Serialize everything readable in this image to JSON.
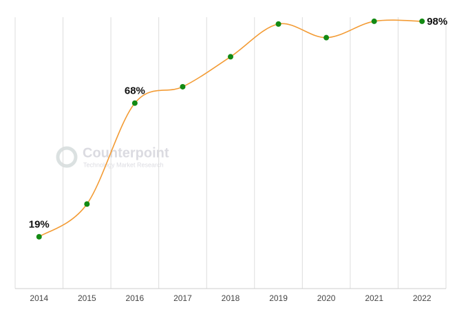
{
  "chart_data": {
    "type": "line",
    "categories": [
      "2014",
      "2015",
      "2016",
      "2017",
      "2018",
      "2019",
      "2020",
      "2021",
      "2022"
    ],
    "values": [
      19,
      31,
      68,
      74,
      85,
      97,
      92,
      98,
      98
    ],
    "value_labels": [
      "19%",
      null,
      "68%",
      null,
      null,
      null,
      null,
      null,
      "98%"
    ],
    "color": "#f39b34",
    "marker_color": "#138a13",
    "ylim": [
      0,
      100
    ],
    "grid": true,
    "watermark": {
      "title": "Counterpoint",
      "subtitle": "Technology Market Research"
    }
  }
}
